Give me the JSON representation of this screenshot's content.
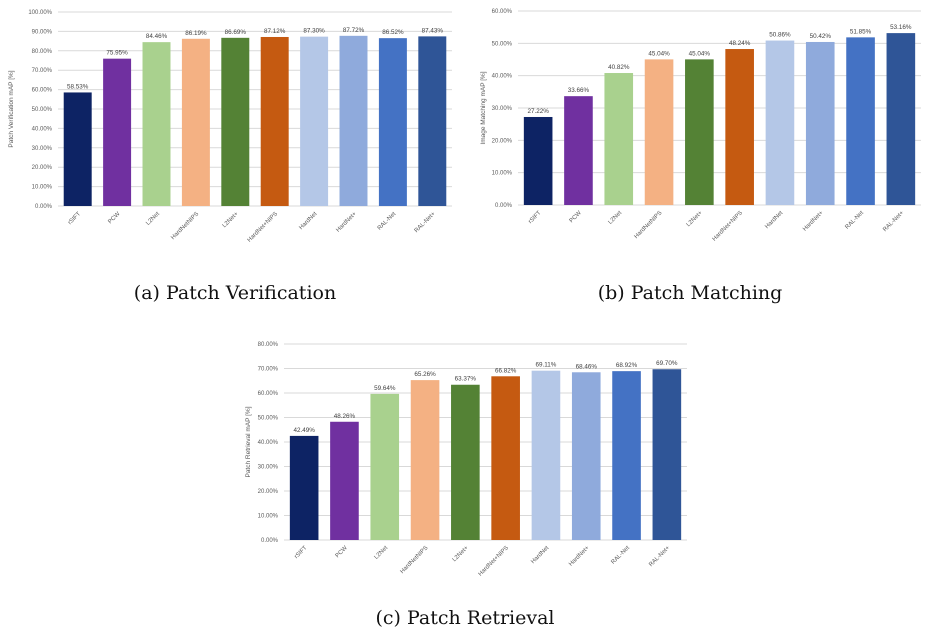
{
  "chart_data": [
    {
      "type": "bar",
      "ylabel": "Patch Verification mAP [%]",
      "ylim": [
        0,
        100
      ],
      "ytick_step": 10,
      "categories": [
        "rSIFT",
        "PCW",
        "L2Net",
        "HardNetNIPS",
        "L2Net+",
        "HardNet+NIPS",
        "HardNet",
        "HardNet+",
        "RAL-Net",
        "RAL-Net+"
      ],
      "values": [
        58.53,
        75.95,
        84.46,
        86.19,
        86.69,
        87.12,
        87.3,
        87.72,
        86.52,
        87.43
      ],
      "value_labels": [
        "58.53%",
        "75.95%",
        "84.46%",
        "86.19%",
        "86.69%",
        "87.12%",
        "87.30%",
        "87.72%",
        "86.52%",
        "87.43%"
      ],
      "colors": [
        "#0d2364",
        "#7030a0",
        "#a9d18e",
        "#f4b183",
        "#548235",
        "#c55a11",
        "#b4c7e7",
        "#8faadc",
        "#4472c4",
        "#2f5597"
      ],
      "grid": true
    },
    {
      "type": "bar",
      "ylabel": "Image Matching mAP [%]",
      "ylim": [
        0,
        60
      ],
      "ytick_step": 10,
      "categories": [
        "rSIFT",
        "PCW",
        "L2Net",
        "HardNetNIPS",
        "L2Net+",
        "HardNet+NIPS",
        "HardNet",
        "HardNet+",
        "RAL-Net",
        "RAL-Net+"
      ],
      "values": [
        27.22,
        33.66,
        40.82,
        45.04,
        45.04,
        48.24,
        50.86,
        50.42,
        51.85,
        53.16
      ],
      "value_labels": [
        "27.22%",
        "33.66%",
        "40.82%",
        "45.04%",
        "45.04%",
        "48.24%",
        "50.86%",
        "50.42%",
        "51.85%",
        "53.16%"
      ],
      "colors": [
        "#0d2364",
        "#7030a0",
        "#a9d18e",
        "#f4b183",
        "#548235",
        "#c55a11",
        "#b4c7e7",
        "#8faadc",
        "#4472c4",
        "#2f5597"
      ],
      "grid": true
    },
    {
      "type": "bar",
      "ylabel": "Patch Retrieval mAP [%]",
      "ylim": [
        0,
        80
      ],
      "ytick_step": 10,
      "categories": [
        "rSIFT",
        "PCW",
        "L2Net",
        "HardNetNIPS",
        "L2Net+",
        "HardNet+NIPS",
        "HardNet",
        "HardNet+",
        "RAL-Net",
        "RAL-Net+"
      ],
      "values": [
        42.49,
        48.26,
        59.64,
        65.26,
        63.37,
        66.82,
        69.11,
        68.46,
        68.92,
        69.7
      ],
      "value_labels": [
        "42.49%",
        "48.26%",
        "59.64%",
        "65.26%",
        "63.37%",
        "66.82%",
        "69.11%",
        "68.46%",
        "68.92%",
        "69.70%"
      ],
      "colors": [
        "#0d2364",
        "#7030a0",
        "#a9d18e",
        "#f4b183",
        "#548235",
        "#c55a11",
        "#b4c7e7",
        "#8faadc",
        "#4472c4",
        "#2f5597"
      ],
      "grid": true
    }
  ],
  "captions": {
    "a": "(a) Patch Verification",
    "b": "(b) Patch Matching",
    "c": "(c) Patch Retrieval"
  }
}
